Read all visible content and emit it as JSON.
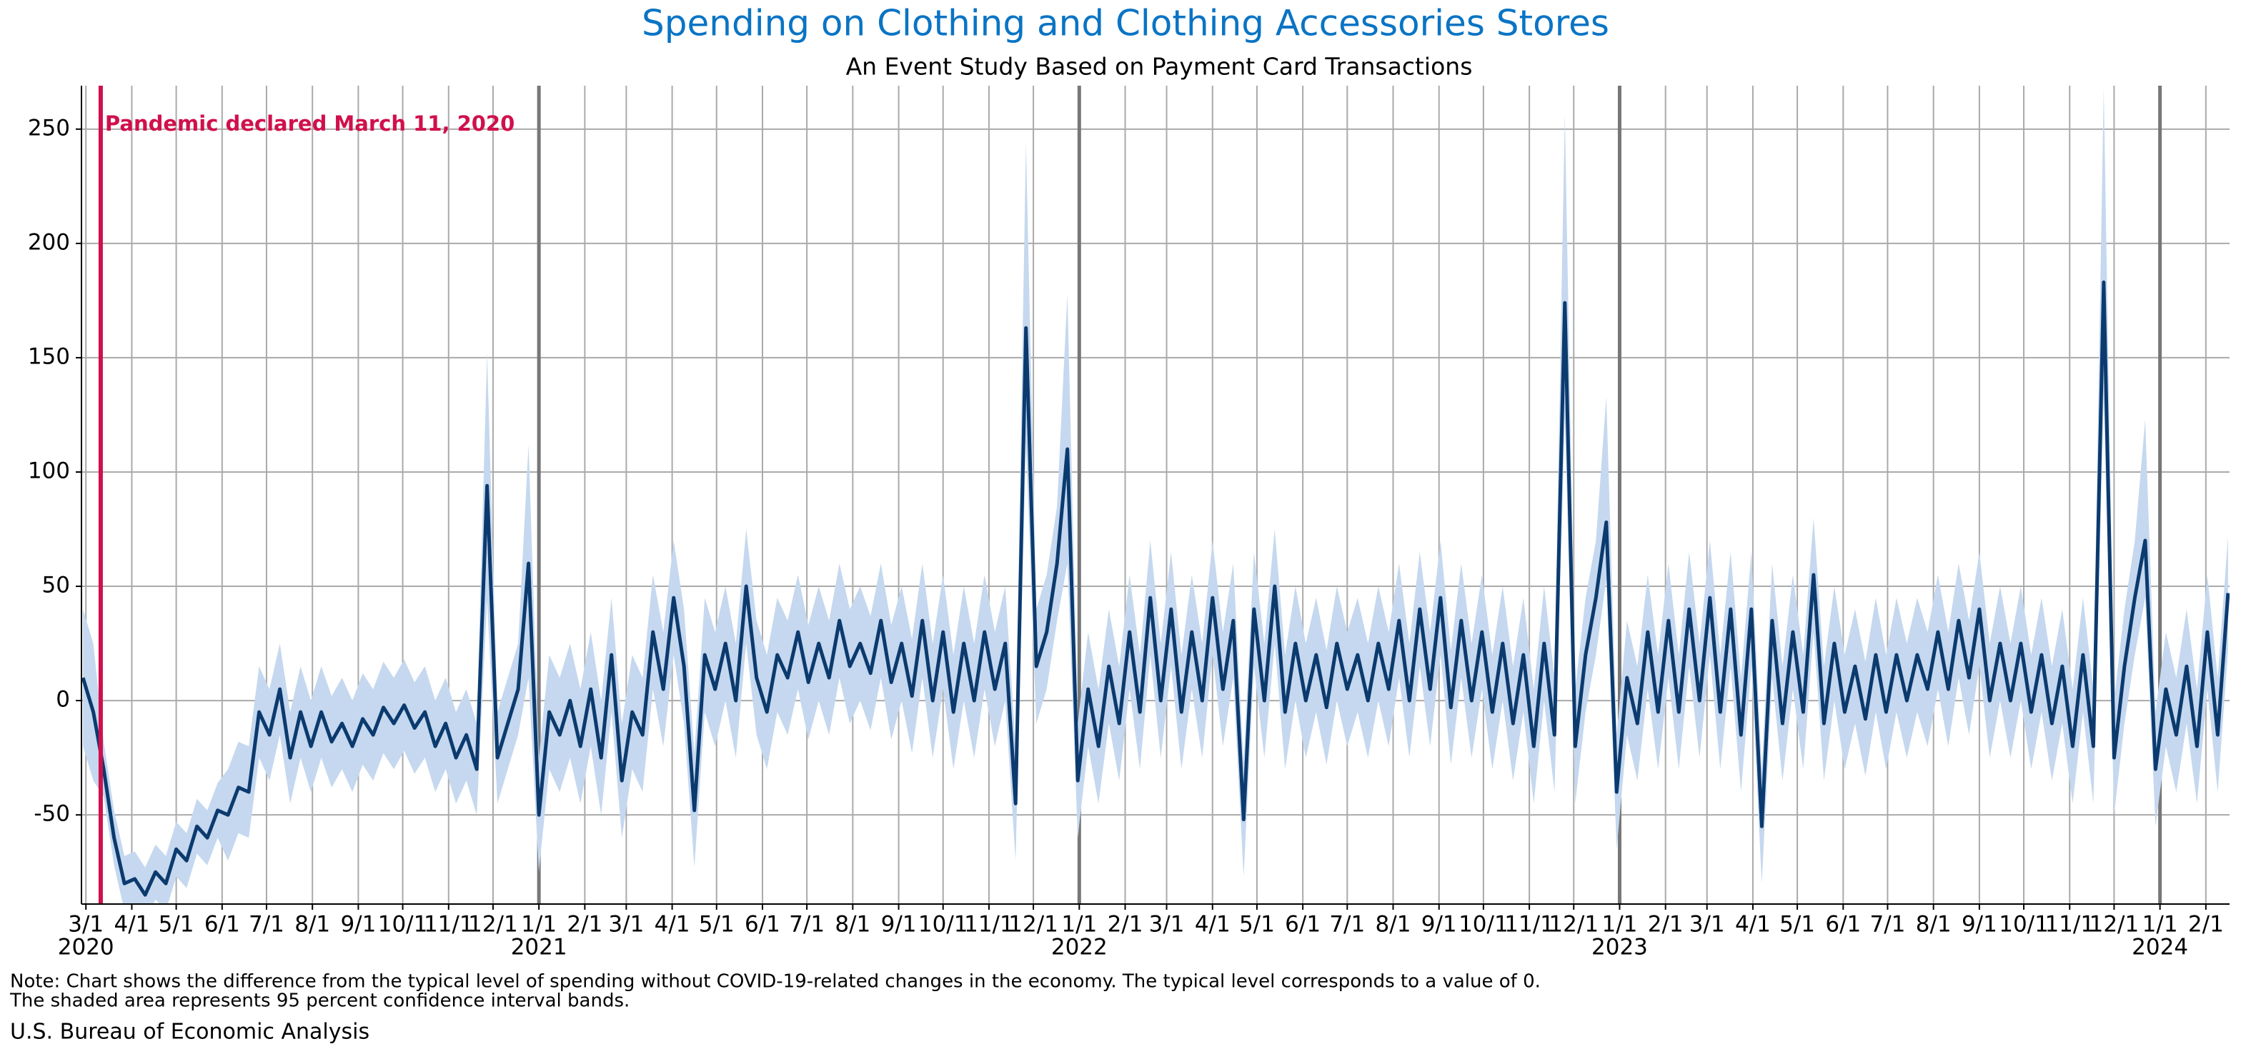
{
  "chart_data": {
    "type": "line",
    "title": "Spending on Clothing and Clothing Accessories Stores",
    "subtitle": "An Event Study Based on Payment Card Transactions",
    "note": [
      "Note: Chart shows the difference from the typical level of spending without COVID-19-related changes in the economy. The typical level corresponds to a value of 0.",
      "The shaded area represents 95 percent confidence interval bands."
    ],
    "source": "U.S. Bureau of Economic Analysis",
    "annotation": {
      "text": "Pandemic declared March 11, 2020",
      "x": "2020-03-11",
      "color": "#d0104c"
    },
    "line_color": "#0b3a6e",
    "band_color": "#c5d8ef",
    "grid": true,
    "xlim": [
      "2020-02-27",
      "2024-02-17"
    ],
    "ylim": [
      -89,
      269
    ],
    "yticks": [
      -50,
      0,
      50,
      100,
      150,
      200,
      250
    ],
    "xticks": [
      {
        "value": "2020-03-01",
        "label": "3/1"
      },
      {
        "value": "2020-04-01",
        "label": "4/1"
      },
      {
        "value": "2020-05-01",
        "label": "5/1"
      },
      {
        "value": "2020-06-01",
        "label": "6/1"
      },
      {
        "value": "2020-07-01",
        "label": "7/1"
      },
      {
        "value": "2020-08-01",
        "label": "8/1"
      },
      {
        "value": "2020-09-01",
        "label": "9/1"
      },
      {
        "value": "2020-10-01",
        "label": "10/1"
      },
      {
        "value": "2020-11-01",
        "label": "11/1"
      },
      {
        "value": "2020-12-01",
        "label": "12/1"
      },
      {
        "value": "2021-01-01",
        "label": "1/1"
      },
      {
        "value": "2021-02-01",
        "label": "2/1"
      },
      {
        "value": "2021-03-01",
        "label": "3/1"
      },
      {
        "value": "2021-04-01",
        "label": "4/1"
      },
      {
        "value": "2021-05-01",
        "label": "5/1"
      },
      {
        "value": "2021-06-01",
        "label": "6/1"
      },
      {
        "value": "2021-07-01",
        "label": "7/1"
      },
      {
        "value": "2021-08-01",
        "label": "8/1"
      },
      {
        "value": "2021-09-01",
        "label": "9/1"
      },
      {
        "value": "2021-10-01",
        "label": "10/1"
      },
      {
        "value": "2021-11-01",
        "label": "11/1"
      },
      {
        "value": "2021-12-01",
        "label": "12/1"
      },
      {
        "value": "2022-01-01",
        "label": "1/1"
      },
      {
        "value": "2022-02-01",
        "label": "2/1"
      },
      {
        "value": "2022-03-01",
        "label": "3/1"
      },
      {
        "value": "2022-04-01",
        "label": "4/1"
      },
      {
        "value": "2022-05-01",
        "label": "5/1"
      },
      {
        "value": "2022-06-01",
        "label": "6/1"
      },
      {
        "value": "2022-07-01",
        "label": "7/1"
      },
      {
        "value": "2022-08-01",
        "label": "8/1"
      },
      {
        "value": "2022-09-01",
        "label": "9/1"
      },
      {
        "value": "2022-10-01",
        "label": "10/1"
      },
      {
        "value": "2022-11-01",
        "label": "11/1"
      },
      {
        "value": "2022-12-01",
        "label": "12/1"
      },
      {
        "value": "2023-01-01",
        "label": "1/1"
      },
      {
        "value": "2023-02-01",
        "label": "2/1"
      },
      {
        "value": "2023-03-01",
        "label": "3/1"
      },
      {
        "value": "2023-04-01",
        "label": "4/1"
      },
      {
        "value": "2023-05-01",
        "label": "5/1"
      },
      {
        "value": "2023-06-01",
        "label": "6/1"
      },
      {
        "value": "2023-07-01",
        "label": "7/1"
      },
      {
        "value": "2023-08-01",
        "label": "8/1"
      },
      {
        "value": "2023-09-01",
        "label": "9/1"
      },
      {
        "value": "2023-10-01",
        "label": "10/1"
      },
      {
        "value": "2023-11-01",
        "label": "11/1"
      },
      {
        "value": "2023-12-01",
        "label": "12/1"
      },
      {
        "value": "2024-01-01",
        "label": "1/1"
      },
      {
        "value": "2024-02-01",
        "label": "2/1"
      }
    ],
    "year_ticks": [
      {
        "value": "2020-03-01",
        "label": "2020"
      },
      {
        "value": "2021-01-01",
        "label": "2021"
      },
      {
        "value": "2022-01-01",
        "label": "2022"
      },
      {
        "value": "2023-01-01",
        "label": "2023"
      },
      {
        "value": "2024-01-01",
        "label": "2024"
      }
    ],
    "x": [
      "2020-02-28",
      "2020-03-06",
      "2020-03-13",
      "2020-03-20",
      "2020-03-27",
      "2020-04-03",
      "2020-04-10",
      "2020-04-17",
      "2020-04-24",
      "2020-05-01",
      "2020-05-08",
      "2020-05-15",
      "2020-05-22",
      "2020-05-29",
      "2020-06-05",
      "2020-06-12",
      "2020-06-19",
      "2020-06-26",
      "2020-07-03",
      "2020-07-10",
      "2020-07-17",
      "2020-07-24",
      "2020-07-31",
      "2020-08-07",
      "2020-08-14",
      "2020-08-21",
      "2020-08-28",
      "2020-09-04",
      "2020-09-11",
      "2020-09-18",
      "2020-09-25",
      "2020-10-02",
      "2020-10-09",
      "2020-10-16",
      "2020-10-23",
      "2020-10-30",
      "2020-11-06",
      "2020-11-13",
      "2020-11-20",
      "2020-11-27",
      "2020-12-04",
      "2020-12-11",
      "2020-12-18",
      "2020-12-25",
      "2021-01-01",
      "2021-01-08",
      "2021-01-15",
      "2021-01-22",
      "2021-01-29",
      "2021-02-05",
      "2021-02-12",
      "2021-02-19",
      "2021-02-26",
      "2021-03-05",
      "2021-03-12",
      "2021-03-19",
      "2021-03-26",
      "2021-04-02",
      "2021-04-09",
      "2021-04-16",
      "2021-04-23",
      "2021-04-30",
      "2021-05-07",
      "2021-05-14",
      "2021-05-21",
      "2021-05-28",
      "2021-06-04",
      "2021-06-11",
      "2021-06-18",
      "2021-06-25",
      "2021-07-02",
      "2021-07-09",
      "2021-07-16",
      "2021-07-23",
      "2021-07-30",
      "2021-08-06",
      "2021-08-13",
      "2021-08-20",
      "2021-08-27",
      "2021-09-03",
      "2021-09-10",
      "2021-09-17",
      "2021-09-24",
      "2021-10-01",
      "2021-10-08",
      "2021-10-15",
      "2021-10-22",
      "2021-10-29",
      "2021-11-05",
      "2021-11-12",
      "2021-11-19",
      "2021-11-26",
      "2021-12-03",
      "2021-12-10",
      "2021-12-17",
      "2021-12-24",
      "2021-12-31",
      "2022-01-07",
      "2022-01-14",
      "2022-01-21",
      "2022-01-28",
      "2022-02-04",
      "2022-02-11",
      "2022-02-18",
      "2022-02-25",
      "2022-03-04",
      "2022-03-11",
      "2022-03-18",
      "2022-03-25",
      "2022-04-01",
      "2022-04-08",
      "2022-04-15",
      "2022-04-22",
      "2022-04-29",
      "2022-05-06",
      "2022-05-13",
      "2022-05-20",
      "2022-05-27",
      "2022-06-03",
      "2022-06-10",
      "2022-06-17",
      "2022-06-24",
      "2022-07-01",
      "2022-07-08",
      "2022-07-15",
      "2022-07-22",
      "2022-07-29",
      "2022-08-05",
      "2022-08-12",
      "2022-08-19",
      "2022-08-26",
      "2022-09-02",
      "2022-09-09",
      "2022-09-16",
      "2022-09-23",
      "2022-09-30",
      "2022-10-07",
      "2022-10-14",
      "2022-10-21",
      "2022-10-28",
      "2022-11-04",
      "2022-11-11",
      "2022-11-18",
      "2022-11-25",
      "2022-12-02",
      "2022-12-09",
      "2022-12-16",
      "2022-12-23",
      "2022-12-30",
      "2023-01-06",
      "2023-01-13",
      "2023-01-20",
      "2023-01-27",
      "2023-02-03",
      "2023-02-10",
      "2023-02-17",
      "2023-02-24",
      "2023-03-03",
      "2023-03-10",
      "2023-03-17",
      "2023-03-24",
      "2023-03-31",
      "2023-04-07",
      "2023-04-14",
      "2023-04-21",
      "2023-04-28",
      "2023-05-05",
      "2023-05-12",
      "2023-05-19",
      "2023-05-26",
      "2023-06-02",
      "2023-06-09",
      "2023-06-16",
      "2023-06-23",
      "2023-06-30",
      "2023-07-07",
      "2023-07-14",
      "2023-07-21",
      "2023-07-28",
      "2023-08-04",
      "2023-08-11",
      "2023-08-18",
      "2023-08-25",
      "2023-09-01",
      "2023-09-08",
      "2023-09-15",
      "2023-09-22",
      "2023-09-29",
      "2023-10-06",
      "2023-10-13",
      "2023-10-20",
      "2023-10-27",
      "2023-11-03",
      "2023-11-10",
      "2023-11-17",
      "2023-11-24",
      "2023-12-01",
      "2023-12-08",
      "2023-12-15",
      "2023-12-22",
      "2023-12-29",
      "2024-01-05",
      "2024-01-12",
      "2024-01-19",
      "2024-01-26",
      "2024-02-02",
      "2024-02-09",
      "2024-02-16"
    ],
    "values": [
      10,
      -5,
      -30,
      -60,
      -80,
      -78,
      -85,
      -75,
      -80,
      -65,
      -70,
      -55,
      -60,
      -48,
      -50,
      -38,
      -40,
      -5,
      -15,
      5,
      -25,
      -5,
      -20,
      -5,
      -18,
      -10,
      -20,
      -8,
      -15,
      -3,
      -10,
      -2,
      -12,
      -5,
      -20,
      -10,
      -25,
      -15,
      -30,
      94,
      -25,
      -10,
      5,
      60,
      -50,
      -5,
      -15,
      0,
      -20,
      5,
      -25,
      20,
      -35,
      -5,
      -15,
      30,
      5,
      45,
      15,
      -48,
      20,
      5,
      25,
      0,
      50,
      10,
      -5,
      20,
      10,
      30,
      8,
      25,
      10,
      35,
      15,
      25,
      12,
      35,
      8,
      25,
      2,
      35,
      0,
      30,
      -5,
      25,
      0,
      30,
      5,
      25,
      -45,
      163,
      15,
      30,
      60,
      110,
      -35,
      5,
      -20,
      15,
      -10,
      30,
      -5,
      45,
      0,
      40,
      -5,
      30,
      0,
      45,
      5,
      35,
      -52,
      40,
      0,
      50,
      -5,
      25,
      0,
      20,
      -3,
      25,
      5,
      20,
      0,
      25,
      5,
      35,
      0,
      40,
      5,
      45,
      -3,
      35,
      0,
      30,
      -5,
      25,
      -10,
      20,
      -20,
      25,
      -15,
      174,
      -20,
      20,
      45,
      78,
      -40,
      10,
      -10,
      30,
      -5,
      35,
      -5,
      40,
      0,
      45,
      -5,
      40,
      -15,
      40,
      -55,
      35,
      -10,
      30,
      -5,
      55,
      -10,
      25,
      -5,
      15,
      -8,
      20,
      -5,
      20,
      0,
      20,
      5,
      30,
      5,
      35,
      10,
      40,
      0,
      25,
      0,
      25,
      -5,
      20,
      -10,
      15,
      -20,
      20,
      -20,
      183,
      -25,
      15,
      45,
      70,
      -30,
      5,
      -15,
      15,
      -20,
      30,
      -15,
      47
    ],
    "ci_lower": [
      -20,
      -35,
      -42,
      -72,
      -92,
      -90,
      -97,
      -87,
      -92,
      -77,
      -82,
      -67,
      -72,
      -60,
      -70,
      -58,
      -60,
      -25,
      -35,
      -15,
      -45,
      -25,
      -40,
      -25,
      -38,
      -30,
      -40,
      -28,
      -35,
      -23,
      -30,
      -22,
      -32,
      -25,
      -40,
      -30,
      -45,
      -35,
      -50,
      44,
      -45,
      -30,
      -15,
      10,
      -75,
      -30,
      -40,
      -25,
      -45,
      -20,
      -50,
      -5,
      -60,
      -30,
      -40,
      5,
      -20,
      20,
      -10,
      -73,
      -5,
      -20,
      0,
      -25,
      25,
      -15,
      -30,
      -5,
      -15,
      5,
      -17,
      0,
      -15,
      10,
      -10,
      0,
      -13,
      10,
      -17,
      0,
      -23,
      10,
      -25,
      5,
      -30,
      0,
      -25,
      5,
      -20,
      0,
      -70,
      113,
      -10,
      5,
      35,
      60,
      -60,
      -20,
      -45,
      -10,
      -35,
      5,
      -30,
      20,
      -25,
      15,
      -30,
      5,
      -25,
      20,
      -20,
      10,
      -77,
      15,
      -25,
      25,
      -30,
      0,
      -25,
      -5,
      -28,
      0,
      -20,
      -5,
      -25,
      0,
      -20,
      10,
      -25,
      15,
      -20,
      20,
      -28,
      10,
      -25,
      5,
      -30,
      0,
      -35,
      -5,
      -45,
      0,
      -40,
      124,
      -45,
      -5,
      20,
      53,
      -65,
      -15,
      -35,
      5,
      -30,
      10,
      -30,
      15,
      -25,
      20,
      -30,
      15,
      -40,
      15,
      -80,
      10,
      -35,
      5,
      -30,
      30,
      -35,
      0,
      -30,
      -10,
      -33,
      -5,
      -30,
      -5,
      -25,
      -5,
      -20,
      5,
      -20,
      10,
      -15,
      15,
      -25,
      0,
      -25,
      0,
      -30,
      -5,
      -35,
      -10,
      -45,
      -5,
      -45,
      133,
      -50,
      -10,
      20,
      45,
      -55,
      -20,
      -40,
      -10,
      -45,
      5,
      -40,
      22
    ],
    "ci_upper": [
      40,
      25,
      -18,
      -48,
      -68,
      -66,
      -73,
      -63,
      -68,
      -53,
      -58,
      -43,
      -48,
      -36,
      -30,
      -18,
      -20,
      15,
      5,
      25,
      -5,
      15,
      0,
      15,
      2,
      10,
      0,
      12,
      5,
      17,
      10,
      18,
      8,
      15,
      0,
      10,
      -5,
      5,
      -10,
      152,
      -5,
      10,
      25,
      112,
      -25,
      20,
      10,
      25,
      5,
      30,
      0,
      45,
      -10,
      20,
      10,
      55,
      30,
      70,
      40,
      -23,
      45,
      30,
      50,
      25,
      75,
      35,
      20,
      45,
      35,
      55,
      33,
      50,
      35,
      60,
      40,
      50,
      37,
      60,
      33,
      50,
      27,
      60,
      25,
      55,
      20,
      50,
      25,
      55,
      30,
      50,
      -20,
      244,
      40,
      55,
      85,
      178,
      -10,
      30,
      5,
      40,
      15,
      55,
      20,
      70,
      25,
      65,
      20,
      55,
      25,
      70,
      30,
      60,
      -27,
      65,
      25,
      75,
      20,
      50,
      25,
      45,
      22,
      50,
      30,
      45,
      25,
      50,
      30,
      60,
      25,
      65,
      30,
      70,
      22,
      60,
      25,
      55,
      20,
      50,
      15,
      45,
      5,
      50,
      10,
      257,
      5,
      45,
      70,
      133,
      -15,
      35,
      15,
      55,
      20,
      60,
      20,
      65,
      25,
      70,
      20,
      65,
      10,
      65,
      -30,
      60,
      15,
      55,
      20,
      80,
      15,
      50,
      20,
      40,
      17,
      45,
      20,
      45,
      25,
      45,
      30,
      55,
      30,
      60,
      35,
      65,
      25,
      50,
      25,
      50,
      20,
      45,
      15,
      40,
      5,
      45,
      5,
      268,
      0,
      40,
      70,
      123,
      -5,
      30,
      10,
      40,
      5,
      55,
      10,
      72
    ]
  }
}
